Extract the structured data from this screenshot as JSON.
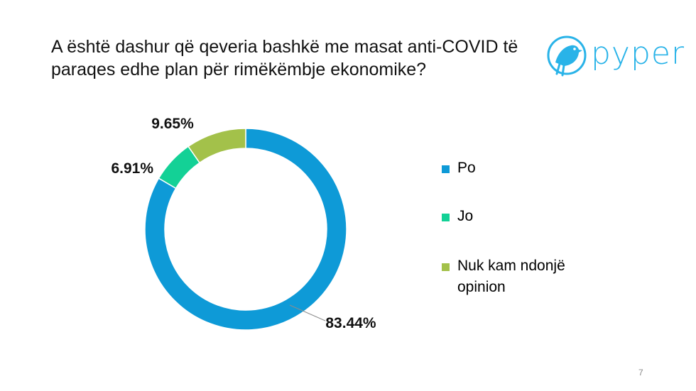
{
  "slide": {
    "title": "A është dashur që qeveria bashkë me masat anti-COVID të paraqes edhe plan për rimëkëmbje ekonomike?",
    "page_number": "7"
  },
  "logo": {
    "text": "pyper",
    "icon": "bird-icon",
    "color": "#29b3e8"
  },
  "chart_data": {
    "type": "pie",
    "style": "donut",
    "title": "",
    "slices": [
      {
        "label": "Po",
        "value": 83.44,
        "value_label": "83.44%",
        "color": "#0e9ad7"
      },
      {
        "label": "Jo",
        "value": 6.91,
        "value_label": "6.91%",
        "color": "#13d196"
      },
      {
        "label": "Nuk kam ndonjë opinion",
        "value": 9.65,
        "value_label": "9.65%",
        "color": "#a3c14a"
      }
    ],
    "legend_position": "right"
  }
}
